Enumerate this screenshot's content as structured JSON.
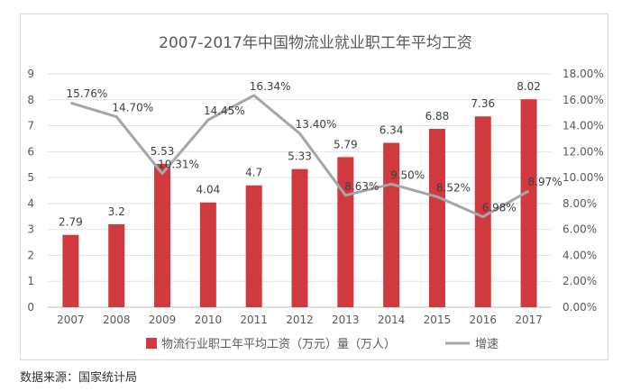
{
  "chart_data": {
    "type": "bar",
    "title": "2007-2017年中国物流业就业职工年平均工资",
    "categories": [
      "2007",
      "2008",
      "2009",
      "2010",
      "2011",
      "2012",
      "2013",
      "2014",
      "2015",
      "2016",
      "2017"
    ],
    "series": [
      {
        "name": "物流行业职工年平均工资（万元）量（万人）",
        "type": "bar",
        "axis": "left",
        "color": "#d0393e",
        "values": [
          2.79,
          3.2,
          5.53,
          4.04,
          4.7,
          5.33,
          5.79,
          6.34,
          6.88,
          7.36,
          8.02
        ],
        "labels": [
          "2.79",
          "3.2",
          "5.53",
          "4.04",
          "4.7",
          "5.33",
          "5.79",
          "6.34",
          "6.88",
          "7.36",
          "8.02"
        ]
      },
      {
        "name": "增速",
        "type": "line",
        "axis": "right",
        "color": "#a6a6a6",
        "values": [
          15.76,
          14.7,
          10.31,
          14.45,
          16.34,
          13.4,
          8.63,
          9.5,
          8.52,
          6.98,
          8.97
        ],
        "labels": [
          "15.76%",
          "14.70%",
          "10.31%",
          "14.45%",
          "16.34%",
          "13.40%",
          "8.63%",
          "9.50%",
          "8.52%",
          "6.98%",
          "8.97%"
        ]
      }
    ],
    "ylim_left": [
      0,
      9
    ],
    "yticks_left": [
      "0",
      "1",
      "2",
      "3",
      "4",
      "5",
      "6",
      "7",
      "8",
      "9"
    ],
    "ylim_right": [
      0,
      18
    ],
    "yticks_right": [
      "0.00%",
      "2.00%",
      "4.00%",
      "6.00%",
      "8.00%",
      "10.00%",
      "12.00%",
      "14.00%",
      "16.00%",
      "18.00%"
    ],
    "grid": true,
    "legend": "bottom"
  },
  "source": "数据来源：国家统计局"
}
